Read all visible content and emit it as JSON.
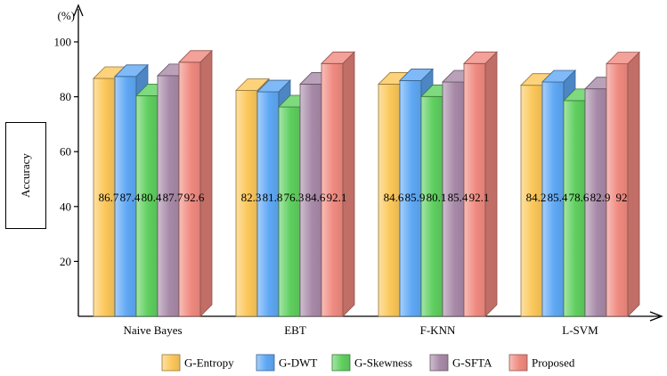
{
  "chart_data": {
    "type": "bar",
    "style": "3d-clustered",
    "categories": [
      "Naive Bayes",
      "EBT",
      "F-KNN",
      "L-SVM"
    ],
    "series": [
      {
        "name": "G-Entropy",
        "values": [
          86.7,
          82.3,
          84.6,
          84.2
        ],
        "color": "#fbc75a"
      },
      {
        "name": "G-DWT",
        "values": [
          87.4,
          81.8,
          85.9,
          85.4
        ],
        "color": "#5fa8f5"
      },
      {
        "name": "G-Skewness",
        "values": [
          80.4,
          76.3,
          80.1,
          78.6
        ],
        "color": "#5fcf5f"
      },
      {
        "name": "G-SFTA",
        "values": [
          87.7,
          84.6,
          85.4,
          82.9
        ],
        "color": "#a88aa8"
      },
      {
        "name": "Proposed",
        "values": [
          92.6,
          92.1,
          92.1,
          92
        ],
        "color": "#f08a80"
      }
    ],
    "data_labels": [
      [
        "86.7",
        "82.3",
        "84.6",
        "84.2"
      ],
      [
        "87.4",
        "81.8",
        "85.9",
        "85.4"
      ],
      [
        "80.4",
        "76.3",
        "80.1",
        "78.6"
      ],
      [
        "87.7",
        "84.6",
        "85.4",
        "82.9"
      ],
      [
        "92.6",
        "92.1",
        "92.1",
        "92"
      ]
    ],
    "ylabel": "Accuracy",
    "yunit": "(%)",
    "yticks": [
      20,
      40,
      60,
      80,
      100
    ],
    "ylim": [
      0,
      100
    ],
    "grid": false,
    "legend_position": "bottom"
  }
}
